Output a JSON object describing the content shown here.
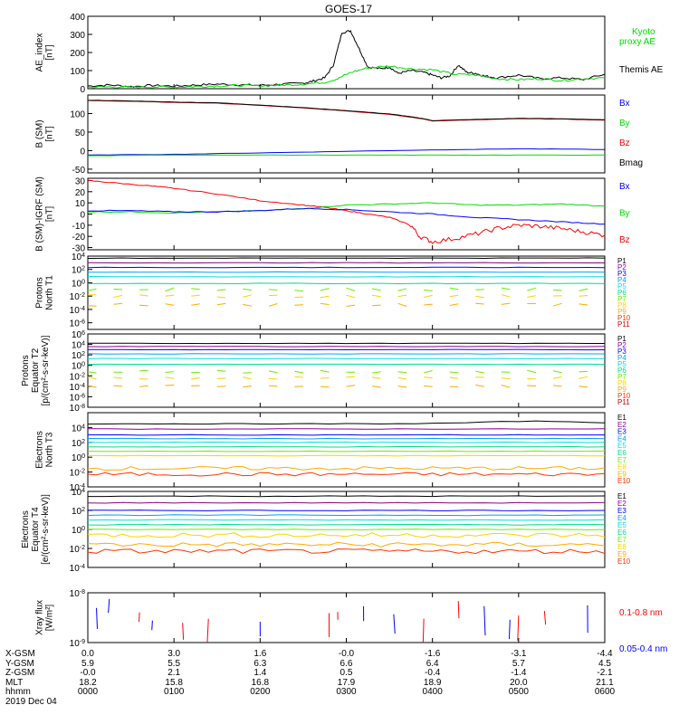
{
  "title": "GOES-17",
  "colors": {
    "black": "#000000",
    "red": "#ff0000",
    "green": "#00dd00",
    "blue": "#0000ff",
    "p_palette": [
      "#000000",
      "#8b008b",
      "#0000ff",
      "#00a0ff",
      "#00e0e0",
      "#00dd88",
      "#66ee00",
      "#ffd000",
      "#ffaa00",
      "#ff3300",
      "#cc0000"
    ]
  },
  "footer": {
    "rows": [
      {
        "label": "X-GSM",
        "values": [
          "0.0",
          "3.0",
          "1.6",
          "-0.0",
          "-1.6",
          "-3.1",
          "-4.4"
        ]
      },
      {
        "label": "Y-GSM",
        "values": [
          "5.9",
          "5.5",
          "6.3",
          "6.6",
          "6.4",
          "5.7",
          "4.5"
        ]
      },
      {
        "label": "Z-GSM",
        "values": [
          "-0.0",
          "2.1",
          "1.4",
          "0.5",
          "-0.4",
          "-1.4",
          "-2.1"
        ]
      },
      {
        "label": "MLT",
        "values": [
          "18.2",
          "15.8",
          "16.8",
          "17.9",
          "18.9",
          "20.0",
          "21.1"
        ]
      },
      {
        "label": "hhmm",
        "values": [
          "0000",
          "0100",
          "0200",
          "0300",
          "0400",
          "0500",
          "0600"
        ]
      }
    ],
    "date": "2019 Dec 04"
  },
  "chart_data": [
    {
      "type": "line",
      "ylabel": "AE_index\n[nT]",
      "ylim": [
        0,
        400
      ],
      "yticks": [
        "0",
        "100",
        "200",
        "300",
        "400"
      ],
      "legend": [
        {
          "name": "Kyoto\nproxy AE",
          "color": "#00dd00"
        },
        {
          "name": "Themis AE",
          "color": "#000000"
        }
      ],
      "series": [
        {
          "name": "Themis AE",
          "color": "#000000",
          "x": [
            0,
            0.25,
            0.5,
            0.75,
            1,
            1.25,
            1.5,
            1.75,
            2,
            2.25,
            2.5,
            2.6,
            2.75,
            2.85,
            2.95,
            3.05,
            3.15,
            3.25,
            3.4,
            3.5,
            3.6,
            3.75,
            3.9,
            4,
            4.1,
            4.2,
            4.3,
            4.4,
            4.5,
            4.6,
            4.75,
            5,
            5.25,
            5.5,
            5.75,
            6
          ],
          "y": [
            15,
            20,
            12,
            18,
            14,
            20,
            25,
            22,
            18,
            25,
            30,
            40,
            60,
            130,
            310,
            320,
            220,
            120,
            110,
            120,
            85,
            100,
            90,
            75,
            60,
            70,
            130,
            90,
            85,
            70,
            60,
            75,
            55,
            60,
            50,
            80
          ]
        },
        {
          "name": "Kyoto proxy AE",
          "color": "#00dd00",
          "x": [
            0,
            0.25,
            0.5,
            0.75,
            1,
            1.25,
            1.5,
            1.75,
            2,
            2.25,
            2.5,
            2.75,
            2.9,
            3.05,
            3.25,
            3.5,
            3.75,
            4,
            4.25,
            4.5,
            4.75,
            5,
            5.25,
            5.5,
            5.75,
            6
          ],
          "y": [
            8,
            10,
            8,
            10,
            9,
            12,
            15,
            18,
            15,
            20,
            25,
            35,
            55,
            90,
            115,
            125,
            110,
            105,
            80,
            75,
            55,
            50,
            55,
            45,
            55,
            60
          ]
        }
      ]
    },
    {
      "type": "line",
      "ylabel": "B (SM)\n[nT]",
      "ylim": [
        -60,
        150
      ],
      "yticks": [
        "-50",
        "0",
        "50",
        "100"
      ],
      "ytick_values": [
        -50,
        0,
        50,
        100
      ],
      "legend": [
        {
          "name": "Bx",
          "color": "#0000ff"
        },
        {
          "name": "By",
          "color": "#00dd00"
        },
        {
          "name": "Bz",
          "color": "#ff0000"
        },
        {
          "name": "Bmag",
          "color": "#000000"
        }
      ],
      "series": [
        {
          "name": "Bz",
          "color": "#ff0000",
          "x": [
            0,
            0.5,
            1,
            1.5,
            2,
            2.5,
            3,
            3.5,
            3.7,
            3.9,
            4,
            4.5,
            5,
            5.5,
            6
          ],
          "y": [
            135,
            133,
            130,
            128,
            122,
            115,
            107,
            98,
            92,
            85,
            80,
            83,
            86,
            85,
            82
          ]
        },
        {
          "name": "Bmag",
          "color": "#000000",
          "x": [
            0,
            0.5,
            1,
            1.5,
            2,
            2.5,
            3,
            3.5,
            3.7,
            3.9,
            4,
            4.5,
            5,
            5.5,
            6
          ],
          "y": [
            136,
            134,
            131,
            129,
            123,
            116,
            108,
            99,
            93,
            86,
            81,
            84,
            87,
            86,
            83
          ]
        },
        {
          "name": "Bx",
          "color": "#0000ff",
          "x": [
            0,
            1,
            2,
            3,
            4,
            5,
            6
          ],
          "y": [
            -12,
            -10,
            -6,
            -2,
            2,
            5,
            3
          ]
        },
        {
          "name": "By",
          "color": "#00dd00",
          "x": [
            0,
            1,
            2,
            3,
            4,
            5,
            6
          ],
          "y": [
            -14,
            -12,
            -12,
            -12,
            -12,
            -12,
            -12
          ]
        }
      ]
    },
    {
      "type": "line",
      "ylabel": "B (SM)-IGRF (SM)\n[nT]",
      "ylim": [
        -32,
        32
      ],
      "yticks": [
        "-30",
        "-20",
        "-10",
        "0",
        "10",
        "20",
        "30"
      ],
      "ytick_values": [
        -30,
        -20,
        -10,
        0,
        10,
        20,
        30
      ],
      "legend": [
        {
          "name": "Bx",
          "color": "#0000ff"
        },
        {
          "name": "By",
          "color": "#00dd00"
        },
        {
          "name": "Bz",
          "color": "#ff0000"
        }
      ],
      "series": [
        {
          "name": "Bz",
          "color": "#ff0000",
          "x": [
            0,
            0.3,
            0.75,
            1,
            1.5,
            2,
            2.5,
            2.75,
            3,
            3.25,
            3.5,
            3.75,
            3.85,
            4,
            4.25,
            4.5,
            4.75,
            5,
            5.25,
            5.5,
            5.75,
            6
          ],
          "y": [
            30,
            28,
            25,
            23,
            18,
            12,
            8,
            6,
            3,
            0,
            -3,
            -10,
            -20,
            -25,
            -22,
            -18,
            -13,
            -10,
            -11,
            -13,
            -16,
            -19
          ]
        },
        {
          "name": "By",
          "color": "#00dd00",
          "x": [
            0,
            0.5,
            1,
            1.5,
            2,
            2.5,
            3,
            3.5,
            4,
            4.5,
            5,
            5.5,
            6
          ],
          "y": [
            2,
            2,
            1,
            2,
            3,
            5,
            8,
            9,
            10,
            8,
            8,
            9,
            7
          ]
        },
        {
          "name": "Bx",
          "color": "#0000ff",
          "x": [
            0,
            0.5,
            1,
            1.5,
            2,
            2.5,
            3,
            3.5,
            4,
            4.5,
            5,
            5.5,
            6
          ],
          "y": [
            3,
            3,
            2,
            2,
            3,
            5,
            4,
            2,
            0,
            -3,
            -5,
            -7,
            -9
          ]
        }
      ]
    },
    {
      "type": "line",
      "log_scale": true,
      "ylabel": "Protons\nNorth T1",
      "ylim_exp": [
        -7,
        4
      ],
      "yticks": [
        "10^4",
        "10^2",
        "10^0",
        "10^-2",
        "10^-4",
        "10^-6"
      ],
      "ytick_exps": [
        4,
        2,
        0,
        -2,
        -4,
        -6
      ],
      "channels": [
        "P1",
        "P2",
        "P3",
        "P4",
        "P5",
        "P6",
        "P7",
        "P8",
        "P9",
        "P10",
        "P11"
      ],
      "channel_levels_exp": [
        3.7,
        3.0,
        2.3,
        1.6,
        0.9,
        -0.1,
        -1.0,
        -2.0,
        -3.3,
        null,
        null
      ]
    },
    {
      "type": "line",
      "log_scale": true,
      "ylabel": "Protons\nEquator T2\n[p/(cm²-s-sr-keV)]",
      "ylim_exp": [
        -8,
        6
      ],
      "yticks": [
        "10^6",
        "10^4",
        "10^2",
        "10^0",
        "10^-2",
        "10^-4",
        "10^-6",
        "10^-8"
      ],
      "ytick_exps": [
        6,
        4,
        2,
        0,
        -2,
        -4,
        -6,
        -8
      ],
      "channels": [
        "P1",
        "P2",
        "P3",
        "P4",
        "P5",
        "P6",
        "P7",
        "P8",
        "P9",
        "P10",
        "P11"
      ],
      "channel_levels_exp": [
        4.2,
        3.6,
        3.0,
        2.2,
        1.3,
        0.2,
        -1.2,
        -2.4,
        -4.0,
        null,
        null
      ]
    },
    {
      "type": "line",
      "log_scale": true,
      "ylabel": "Electrons\nNorth T3",
      "ylim_exp": [
        -4,
        6
      ],
      "yticks": [
        "10^4",
        "10^2",
        "10^0",
        "10^-2",
        "10^-4"
      ],
      "ytick_exps": [
        4,
        2,
        0,
        -2,
        -4
      ],
      "channels": [
        "E1",
        "E2",
        "E3",
        "E4",
        "E5",
        "E6",
        "E7",
        "E8",
        "E9",
        "E10"
      ],
      "channel_levels_exp": [
        4.5,
        3.8,
        3.0,
        2.5,
        2.0,
        1.4,
        0.8,
        0.2,
        -1.5,
        -2.3
      ]
    },
    {
      "type": "line",
      "log_scale": true,
      "ylabel": "Electrons\nEquator T4\n[e/(cm²-s-sr-keV)]",
      "ylim_exp": [
        -4,
        4
      ],
      "yticks": [
        "10^4",
        "10^2",
        "10^0",
        "10^-2",
        "10^-4"
      ],
      "ytick_exps": [
        4,
        2,
        0,
        -2,
        -4
      ],
      "channels": [
        "E1",
        "E2",
        "E3",
        "E4",
        "E5",
        "E6",
        "E7",
        "E8",
        "E9",
        "E10"
      ],
      "channel_levels_exp": [
        3.5,
        2.8,
        2.0,
        1.5,
        1.0,
        0.5,
        0.0,
        -0.6,
        -1.6,
        -2.3
      ]
    },
    {
      "type": "line",
      "log_scale": true,
      "ylabel": "Xray flux\n[W/m²]",
      "ylim_exp": [
        -9,
        -8
      ],
      "yticks": [
        "10^-8",
        "10^-9"
      ],
      "ytick_exps": [
        -8,
        -9
      ],
      "legend": [
        {
          "name": "0.1-0.8 nm",
          "color": "#ff0000"
        },
        {
          "name": "0.05-0.4 nm",
          "color": "#0000ff"
        }
      ]
    }
  ]
}
